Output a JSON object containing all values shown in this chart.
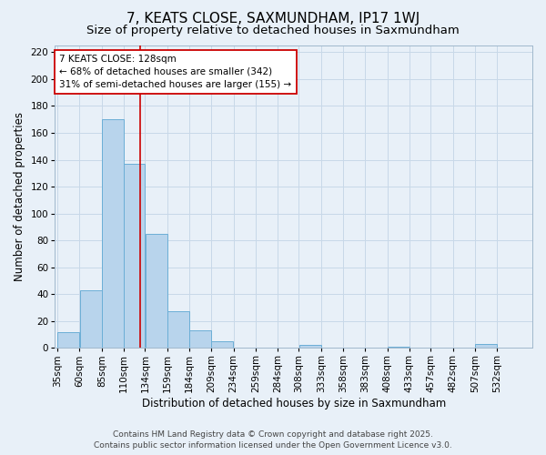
{
  "title": "7, KEATS CLOSE, SAXMUNDHAM, IP17 1WJ",
  "subtitle": "Size of property relative to detached houses in Saxmundham",
  "xlabel": "Distribution of detached houses by size in Saxmundham",
  "ylabel": "Number of detached properties",
  "bar_categories": [
    "35sqm",
    "60sqm",
    "85sqm",
    "110sqm",
    "134sqm",
    "159sqm",
    "184sqm",
    "209sqm",
    "234sqm",
    "259sqm",
    "284sqm",
    "308sqm",
    "333sqm",
    "358sqm",
    "383sqm",
    "408sqm",
    "433sqm",
    "457sqm",
    "482sqm",
    "507sqm",
    "532sqm"
  ],
  "bar_heights": [
    12,
    43,
    170,
    137,
    85,
    27,
    13,
    5,
    0,
    0,
    0,
    2,
    0,
    0,
    0,
    1,
    0,
    0,
    0,
    3,
    0
  ],
  "bin_edges": [
    35,
    60,
    85,
    110,
    134,
    159,
    184,
    209,
    234,
    259,
    284,
    308,
    333,
    358,
    383,
    408,
    433,
    457,
    482,
    507,
    532,
    557
  ],
  "bar_color": "#b8d4ec",
  "bar_edge_color": "#6baed6",
  "vline_x": 128,
  "vline_color": "#cc0000",
  "ylim": [
    0,
    225
  ],
  "yticks": [
    0,
    20,
    40,
    60,
    80,
    100,
    120,
    140,
    160,
    180,
    200,
    220
  ],
  "annotation_title": "7 KEATS CLOSE: 128sqm",
  "annotation_line1": "← 68% of detached houses are smaller (342)",
  "annotation_line2": "31% of semi-detached houses are larger (155) →",
  "annotation_box_color": "#ffffff",
  "annotation_box_edge": "#cc0000",
  "grid_color": "#c8d8e8",
  "bg_color": "#e8f0f8",
  "footer1": "Contains HM Land Registry data © Crown copyright and database right 2025.",
  "footer2": "Contains public sector information licensed under the Open Government Licence v3.0.",
  "title_fontsize": 11,
  "subtitle_fontsize": 9.5,
  "axis_label_fontsize": 8.5,
  "tick_fontsize": 7.5,
  "annotation_fontsize": 7.5,
  "footer_fontsize": 6.5
}
